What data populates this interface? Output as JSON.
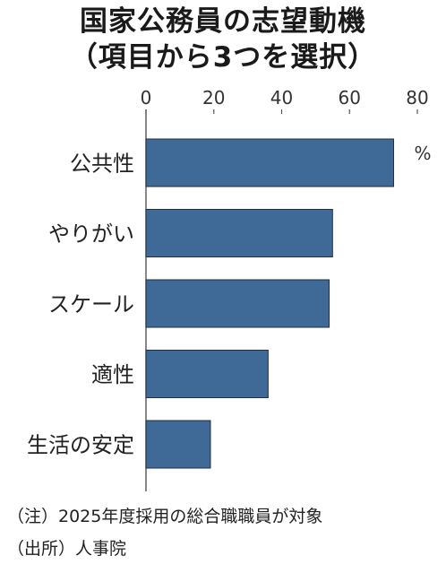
{
  "chart_data": {
    "type": "bar",
    "orientation": "horizontal",
    "title_lines": [
      "国家公務員の志望動機",
      "（項目から3つを選択）"
    ],
    "categories": [
      "公共性",
      "やりがい",
      "スケール",
      "適性",
      "生活の安定"
    ],
    "values": [
      73,
      55,
      54,
      36,
      19
    ],
    "unit_label": "%",
    "xlim": [
      0,
      80
    ],
    "xticks": [
      "0",
      "20",
      "40",
      "60",
      "80"
    ],
    "grid": false,
    "bar_color": "#3f6a98",
    "bar_border_color": "#1f2f45"
  },
  "notes": {
    "note": "（注）2025年度採用の総合職職員が対象",
    "source": "（出所）人事院"
  }
}
